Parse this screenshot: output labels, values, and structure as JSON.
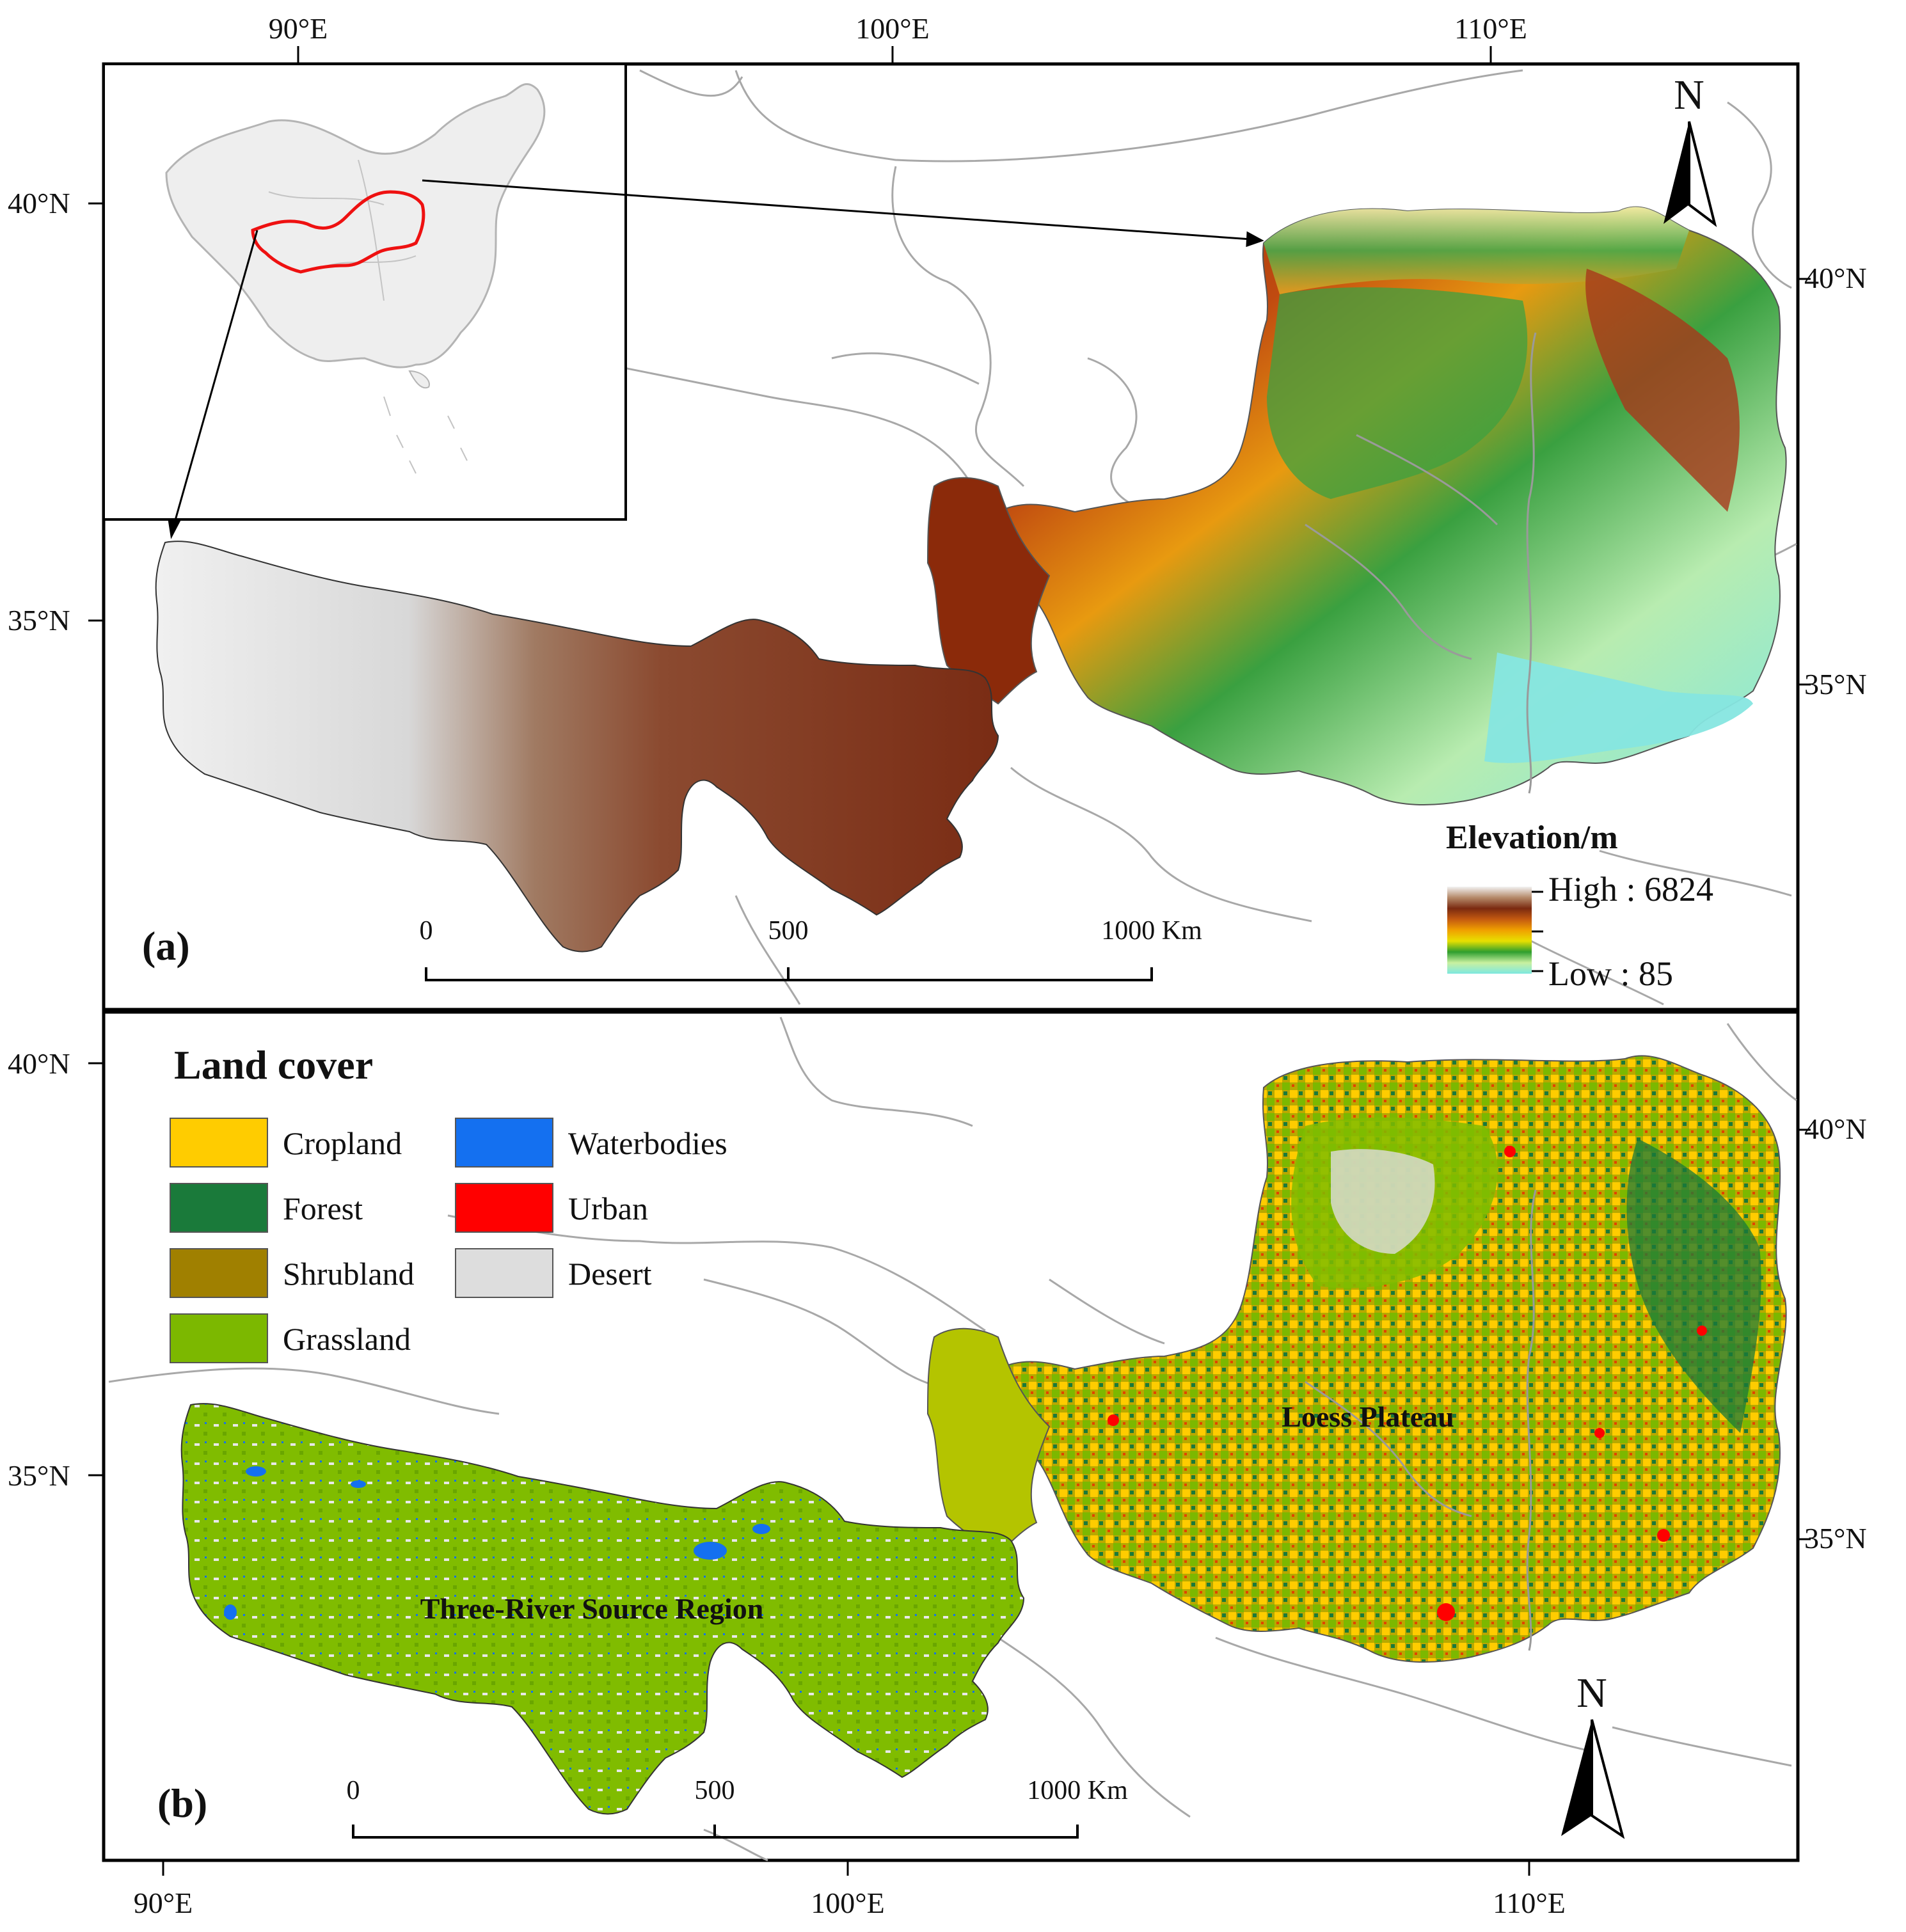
{
  "panel_a": {
    "tag": "(a)",
    "top_ticks": [
      "90°E",
      "100°E",
      "110°E"
    ],
    "left_ticks": [
      "40°N",
      "35°N"
    ],
    "right_ticks": [
      "40°N",
      "35°N"
    ],
    "north": "N",
    "legend": {
      "title": "Elevation/m",
      "high": "High : 6824",
      "low": "Low : 85",
      "ramp_colors": [
        "#f2f2f2",
        "#b58a6a",
        "#7a2a10",
        "#c45a10",
        "#f0a000",
        "#e8e000",
        "#2e9e2e",
        "#c8f0a0",
        "#7ee8e0"
      ]
    },
    "scalebar": {
      "labels": [
        "0",
        "500",
        "1000 Km"
      ]
    }
  },
  "panel_b": {
    "tag": "(b)",
    "bottom_ticks": [
      "90°E",
      "100°E",
      "110°E"
    ],
    "left_ticks": [
      "40°N",
      "35°N"
    ],
    "right_ticks": [
      "40°N",
      "35°N"
    ],
    "north": "N",
    "legend": {
      "title": "Land cover",
      "items": [
        {
          "label": "Cropland",
          "color": "#ffcc00"
        },
        {
          "label": "Forest",
          "color": "#1a7a3a"
        },
        {
          "label": "Shrubland",
          "color": "#a08000"
        },
        {
          "label": "Grassland",
          "color": "#7cb800"
        },
        {
          "label": "Waterbodies",
          "color": "#1470f0"
        },
        {
          "label": "Urban",
          "color": "#ff0000"
        },
        {
          "label": "Desert",
          "color": "#dddddd"
        }
      ]
    },
    "region_labels": [
      "Loess Plateau",
      "Three-River Source Region"
    ],
    "scalebar": {
      "labels": [
        "0",
        "500",
        "1000 Km"
      ]
    }
  }
}
